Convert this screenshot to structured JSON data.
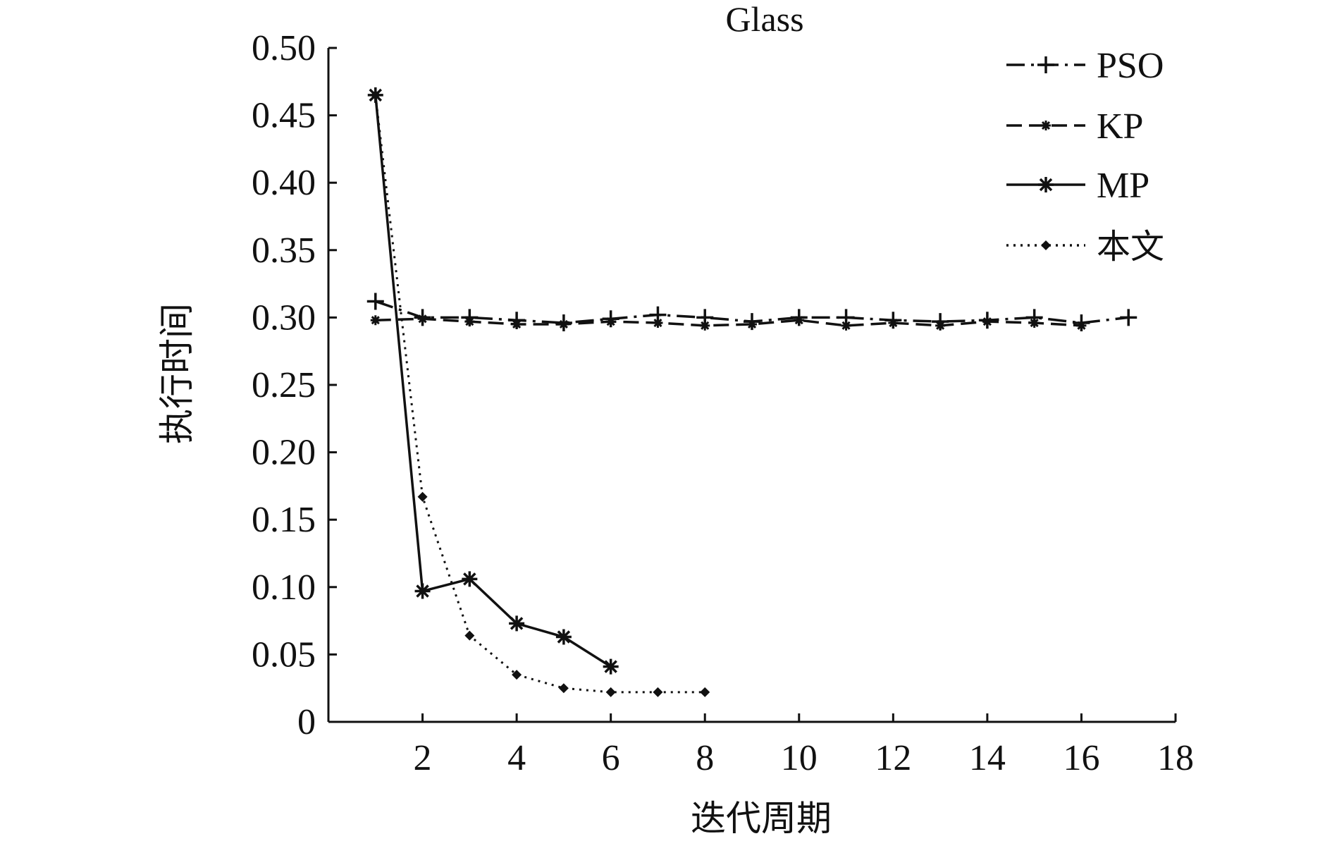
{
  "chart_data": {
    "type": "line",
    "title": "Glass",
    "xlabel": "迭代周期",
    "ylabel": "执行时间",
    "xlim": [
      0,
      18
    ],
    "ylim": [
      0,
      0.5
    ],
    "xticks": [
      2,
      4,
      6,
      8,
      10,
      12,
      14,
      16,
      18
    ],
    "xtick_labels": [
      "2",
      "4",
      "6",
      "8",
      "10",
      "12",
      "14",
      "16",
      "18"
    ],
    "yticks": [
      0,
      0.05,
      0.1,
      0.15,
      0.2,
      0.25,
      0.3,
      0.35,
      0.4,
      0.45,
      0.5
    ],
    "ytick_labels": [
      "0",
      "0.05",
      "0.10",
      "0.15",
      "0.20",
      "0.25",
      "0.30",
      "0.35",
      "0.40",
      "0.45",
      "0.50"
    ],
    "legend_position": "top-right",
    "series": [
      {
        "name": "PSO",
        "line_style": "dash-dot",
        "marker": "plus",
        "x": [
          1,
          2,
          3,
          4,
          5,
          6,
          7,
          8,
          9,
          10,
          11,
          12,
          13,
          14,
          15,
          16,
          17
        ],
        "y": [
          0.312,
          0.3,
          0.3,
          0.298,
          0.296,
          0.299,
          0.302,
          0.3,
          0.297,
          0.3,
          0.3,
          0.298,
          0.297,
          0.298,
          0.3,
          0.296,
          0.3
        ]
      },
      {
        "name": "KP",
        "line_style": "dashed",
        "marker": "small-star",
        "x": [
          1,
          2,
          3,
          4,
          5,
          6,
          7,
          8,
          9,
          10,
          11,
          12,
          13,
          14,
          15,
          16
        ],
        "y": [
          0.298,
          0.299,
          0.297,
          0.295,
          0.295,
          0.297,
          0.296,
          0.294,
          0.295,
          0.298,
          0.294,
          0.296,
          0.294,
          0.297,
          0.296,
          0.294
        ]
      },
      {
        "name": "MP",
        "line_style": "solid",
        "marker": "asterisk",
        "x": [
          1,
          2,
          3,
          4,
          5,
          6
        ],
        "y": [
          0.465,
          0.097,
          0.106,
          0.073,
          0.063,
          0.041
        ]
      },
      {
        "name": "本文",
        "line_style": "dotted",
        "marker": "diamond",
        "x": [
          1,
          2,
          3,
          4,
          5,
          6,
          7,
          8
        ],
        "y": [
          0.465,
          0.167,
          0.064,
          0.035,
          0.025,
          0.022,
          0.022,
          0.022
        ]
      }
    ]
  }
}
